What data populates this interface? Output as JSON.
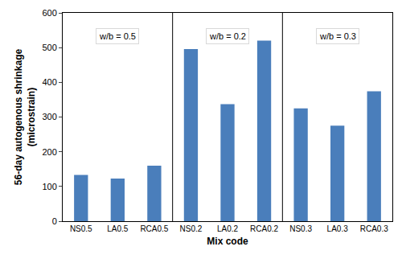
{
  "chart_data": {
    "type": "bar",
    "x_label": "Mix code",
    "y_label": "56-day autogenous shrinkage\n(microstrain)",
    "categories": [
      "NS0.5",
      "LA0.5",
      "RCA0.5",
      "NS0.2",
      "LA0.2",
      "RCA0.2",
      "NS0.3",
      "LA0.3",
      "RCA0.3"
    ],
    "values": [
      133,
      123,
      160,
      496,
      337,
      520,
      325,
      275,
      374
    ],
    "color": "#4a7ebb",
    "ylim": [
      0,
      600
    ],
    "yticks": [
      0,
      100,
      200,
      300,
      400,
      500,
      600
    ],
    "grid": false,
    "annotations": [
      "w/b = 0.5",
      "w/b = 0.2",
      "w/b = 0.3"
    ]
  }
}
